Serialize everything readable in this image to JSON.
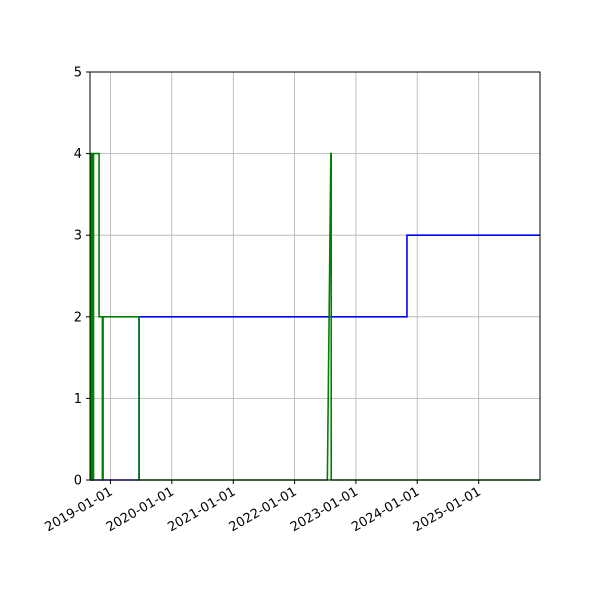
{
  "chart_data": {
    "type": "line",
    "title": "",
    "xlabel": "",
    "ylabel": "",
    "x_axis_type": "date",
    "xlim": [
      "2018-09-01",
      "2026-01-01"
    ],
    "ylim": [
      0,
      5
    ],
    "grid": true,
    "legend": "none",
    "x_tick_labels": [
      "2019-01-01",
      "2020-01-01",
      "2021-01-01",
      "2022-01-01",
      "2023-01-01",
      "2024-01-01",
      "2025-01-01"
    ],
    "y_tick_labels": [
      "0",
      "1",
      "2",
      "3",
      "4",
      "5"
    ],
    "series": [
      {
        "color": "#0000ff",
        "x": [
          "2018-09-01",
          "2018-09-12",
          "2018-09-12",
          "2018-09-15",
          "2018-09-15",
          "2018-11-15",
          "2018-11-15",
          "2018-11-17",
          "2018-11-17",
          "2019-06-20",
          "2019-06-20",
          "2019-06-23",
          "2019-06-23",
          "2023-11-01",
          "2023-11-01",
          "2026-01-01"
        ],
        "y": [
          0,
          0,
          2,
          2,
          0,
          0,
          2,
          2,
          0,
          0,
          2,
          2,
          2,
          2,
          3,
          3
        ]
      },
      {
        "color": "#008000",
        "x": [
          "2018-09-01",
          "2018-09-03",
          "2018-09-03",
          "2018-09-06",
          "2018-09-06",
          "2018-09-09",
          "2018-09-09",
          "2018-09-12",
          "2018-09-12",
          "2018-09-14",
          "2018-09-14",
          "2018-09-17",
          "2018-09-17",
          "2018-09-19",
          "2018-09-19",
          "2018-09-22",
          "2018-09-22",
          "2018-09-25",
          "2018-09-25",
          "2018-10-25",
          "2018-10-25",
          "2018-11-14",
          "2018-11-14",
          "2018-11-17",
          "2018-11-17",
          "2019-06-20",
          "2019-06-20",
          "2019-06-23",
          "2019-06-23",
          "2022-07-15",
          "2022-08-05",
          "2022-08-07",
          "2022-08-07",
          "2026-01-01"
        ],
        "y": [
          4,
          4,
          0,
          0,
          4,
          4,
          0,
          0,
          4,
          4,
          0,
          0,
          4,
          4,
          0,
          0,
          4,
          4,
          4,
          4,
          2,
          2,
          0,
          0,
          2,
          2,
          0,
          0,
          0,
          0,
          4,
          4,
          0,
          0
        ]
      }
    ]
  }
}
